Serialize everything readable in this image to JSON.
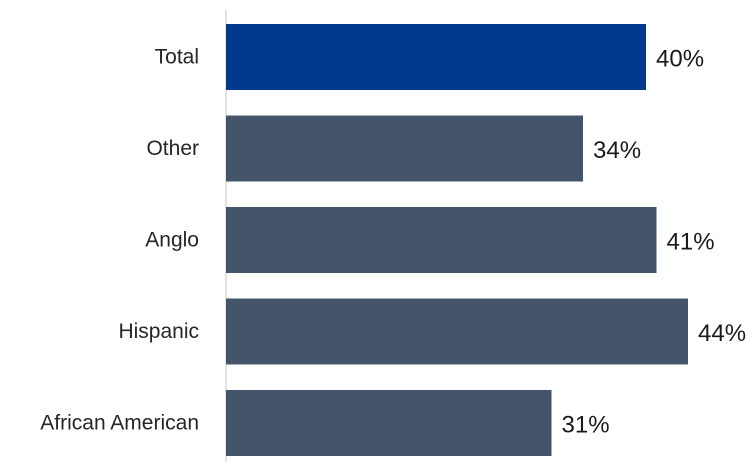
{
  "chart_data": {
    "type": "bar",
    "orientation": "horizontal",
    "title": "",
    "xlabel": "",
    "ylabel": "",
    "categories": [
      "Total",
      "Other",
      "Anglo",
      "Hispanic",
      "African American"
    ],
    "values": [
      40,
      34,
      41,
      44,
      31
    ],
    "value_labels": [
      "40%",
      "34%",
      "41%",
      "44%",
      "31%"
    ],
    "unit": "%",
    "xlim": [
      0,
      45
    ],
    "grid": false,
    "legend": "none",
    "colors": {
      "highlight": "#003A8C",
      "default": "#44546A",
      "axis": "#D9D9D9"
    },
    "highlight_categories": [
      "Total"
    ]
  }
}
